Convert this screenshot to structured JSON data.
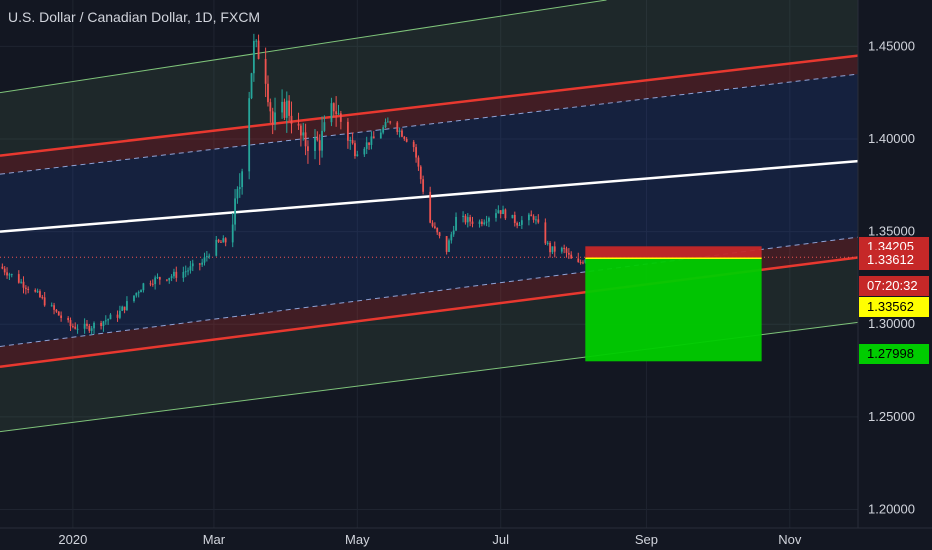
{
  "header": {
    "title": "U.S. Dollar / Canadian Dollar, 1D, FXCM"
  },
  "colors": {
    "background": "#131722",
    "axis_text": "#d1d4dc",
    "grid": "#1f2430",
    "candle_up": "#26a69a",
    "candle_down": "#ef5350",
    "channel_red": "#e8382f",
    "channel_green": "#7fc47a",
    "midline": "#ffffff",
    "stop_zone": "#c62828",
    "target_zone": "#00cc00"
  },
  "price_tags": [
    {
      "label": "1.34205",
      "bg": "#c62828",
      "fg": "#ffffff"
    },
    {
      "label": "1.33612",
      "bg": "#c62828",
      "fg": "#ffffff"
    },
    {
      "label": "07:20:32",
      "bg": "#c62828",
      "fg": "#ffffff"
    },
    {
      "label": "1.33562",
      "bg": "#ffff00",
      "fg": "#000000"
    },
    {
      "label": "1.27998",
      "bg": "#00cc00",
      "fg": "#000000"
    }
  ],
  "chart_data": {
    "type": "candlestick",
    "title": "U.S. Dollar / Canadian Dollar, 1D, FXCM",
    "x_tick_labels": [
      "2020",
      "Mar",
      "May",
      "Jul",
      "Sep",
      "Nov"
    ],
    "y_tick_labels": [
      "1.45000",
      "1.40000",
      "1.35000",
      "1.30000",
      "1.25000",
      "1.20000"
    ],
    "y_ticks": [
      1.45,
      1.4,
      1.35,
      1.3,
      1.25,
      1.2
    ],
    "ylim": [
      1.19,
      1.475
    ],
    "xlim": [
      "2019-12-01",
      "2020-11-30"
    ],
    "x_ticks": [
      "2020-01-01",
      "2020-03-01",
      "2020-05-01",
      "2020-07-01",
      "2020-09-01",
      "2020-11-01"
    ],
    "price_path": [
      [
        "2019-12-01",
        1.331
      ],
      [
        "2019-12-15",
        1.318
      ],
      [
        "2019-12-31",
        1.299
      ],
      [
        "2020-01-07",
        1.298
      ],
      [
        "2020-01-20",
        1.305
      ],
      [
        "2020-02-01",
        1.323
      ],
      [
        "2020-02-15",
        1.327
      ],
      [
        "2020-02-25",
        1.333
      ],
      [
        "2020-03-01",
        1.343
      ],
      [
        "2020-03-07",
        1.345
      ],
      [
        "2020-03-12",
        1.375
      ],
      [
        "2020-03-18",
        1.45
      ],
      [
        "2020-03-22",
        1.443
      ],
      [
        "2020-03-26",
        1.408
      ],
      [
        "2020-04-01",
        1.418
      ],
      [
        "2020-04-08",
        1.398
      ],
      [
        "2020-04-15",
        1.398
      ],
      [
        "2020-04-21",
        1.418
      ],
      [
        "2020-04-30",
        1.393
      ],
      [
        "2020-05-08",
        1.4
      ],
      [
        "2020-05-15",
        1.41
      ],
      [
        "2020-05-25",
        1.396
      ],
      [
        "2020-06-01",
        1.355
      ],
      [
        "2020-06-08",
        1.34
      ],
      [
        "2020-06-12",
        1.357
      ],
      [
        "2020-06-22",
        1.355
      ],
      [
        "2020-06-30",
        1.362
      ],
      [
        "2020-07-08",
        1.355
      ],
      [
        "2020-07-15",
        1.358
      ],
      [
        "2020-07-22",
        1.34
      ],
      [
        "2020-07-28",
        1.34
      ],
      [
        "2020-08-02",
        1.331
      ],
      [
        "2020-08-06",
        1.336
      ]
    ],
    "channels": {
      "outer_upper_green": [
        [
          "2019-12-01",
          1.425
        ],
        [
          "2020-08-15",
          1.475
        ]
      ],
      "upper_red": [
        [
          "2019-12-01",
          1.391
        ],
        [
          "2020-11-30",
          1.445
        ]
      ],
      "upper_dashed": [
        [
          "2019-12-01",
          1.381
        ],
        [
          "2020-11-30",
          1.435
        ]
      ],
      "midline_white": [
        [
          "2019-12-01",
          1.35
        ],
        [
          "2020-11-30",
          1.388
        ]
      ],
      "lower_dashed": [
        [
          "2019-12-01",
          1.288
        ],
        [
          "2020-11-30",
          1.347
        ]
      ],
      "lower_red": [
        [
          "2019-12-01",
          1.277
        ],
        [
          "2020-11-30",
          1.336
        ]
      ],
      "outer_lower_green": [
        [
          "2019-12-01",
          1.242
        ],
        [
          "2020-11-30",
          1.301
        ]
      ]
    },
    "current_price": 1.33612,
    "position": {
      "start": "2020-08-06",
      "end": "2020-10-20",
      "entry": 1.33562,
      "stop": 1.34205,
      "target": 1.27998
    }
  }
}
